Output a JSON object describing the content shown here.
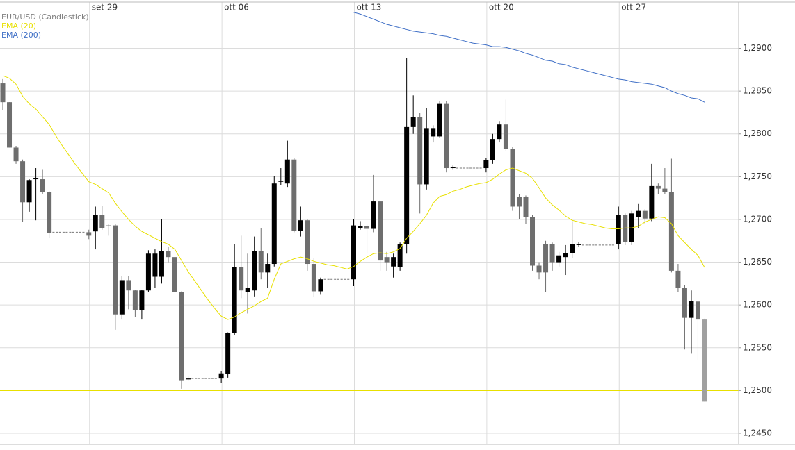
{
  "chart_data": {
    "type": "candlestick",
    "categories": [
      null,
      null,
      null,
      null,
      null,
      null,
      null,
      null,
      null,
      null,
      null,
      null,
      null,
      "set 29",
      null,
      null,
      null,
      null,
      null,
      null,
      null,
      null,
      null,
      null,
      null,
      null,
      null,
      null,
      null,
      null,
      null,
      null,
      null,
      "ott 06",
      null,
      null,
      null,
      null,
      null,
      null,
      null,
      null,
      null,
      null,
      null,
      null,
      null,
      null,
      null,
      null,
      null,
      null,
      null,
      "ott 13",
      null,
      null,
      null,
      null,
      null,
      null,
      null,
      null,
      null,
      null,
      null,
      null,
      null,
      null,
      null,
      null,
      null,
      null,
      null,
      "ott 20",
      null,
      null,
      null,
      null,
      null,
      null,
      null,
      null,
      null,
      null,
      null,
      null,
      null,
      null,
      null,
      null,
      null,
      null,
      null,
      "ott 27",
      null,
      null,
      null,
      null,
      null,
      null,
      null,
      null,
      null,
      null,
      null,
      null,
      null
    ],
    "series": [
      {
        "name": "EUR/USD (Candlestick)",
        "color": "#808080",
        "up_color": "#000000",
        "down_color": "#6e6e6e",
        "last_color": "#a0a0a0",
        "open": [
          1.2859,
          1.2837,
          1.2784,
          1.2768,
          1.272,
          1.2747,
          1.2747,
          1.2732,
          1.2685,
          1.2685,
          1.2685,
          1.2685,
          1.2685,
          1.2685,
          1.2686,
          1.2705,
          1.2693,
          1.2693,
          1.2589,
          1.2629,
          1.2617,
          1.2594,
          1.2617,
          1.2633,
          1.2633,
          1.2663,
          1.2656,
          1.2615,
          1.2513,
          1.2514,
          1.2514,
          1.2514,
          1.2514,
          1.2514,
          1.2519,
          1.2567,
          1.2644,
          1.2615,
          1.2617,
          1.2663,
          1.2638,
          1.2648,
          1.2744,
          1.2742,
          1.277,
          1.2687,
          1.2699,
          1.2648,
          1.2616,
          1.263,
          1.263,
          1.263,
          1.263,
          1.263,
          1.269,
          1.2692,
          1.2689,
          1.2721,
          1.2656,
          1.2645,
          1.2644,
          1.2671,
          1.2808,
          1.282,
          1.2741,
          1.2797,
          1.2797,
          1.2835,
          1.276,
          1.276,
          1.276,
          1.276,
          1.276,
          1.276,
          1.2769,
          1.2794,
          1.2811,
          1.2782,
          1.2726,
          1.2726,
          1.2703,
          1.2646,
          1.2671,
          1.2671,
          1.265,
          1.2656,
          1.2661,
          1.267,
          1.267,
          1.267,
          1.267,
          1.267,
          1.267,
          1.2671,
          1.2705,
          1.2674,
          1.2703,
          1.271,
          1.2701,
          1.2739,
          1.2736,
          1.2732,
          1.264,
          1.262,
          1.2585,
          1.2604,
          1.2583
        ],
        "high": [
          1.2864,
          1.2837,
          1.2786,
          1.277,
          1.2747,
          1.276,
          1.2758,
          1.2733,
          1.2685,
          1.2685,
          1.2685,
          1.2685,
          1.2685,
          1.2688,
          1.2715,
          1.2716,
          1.2695,
          1.2695,
          1.2634,
          1.2634,
          1.2618,
          1.2618,
          1.2664,
          1.2665,
          1.27,
          1.2668,
          1.2657,
          1.2616,
          1.2517,
          1.2514,
          1.2514,
          1.2514,
          1.2514,
          1.2523,
          1.2568,
          1.2671,
          1.2681,
          1.266,
          1.268,
          1.269,
          1.266,
          1.2751,
          1.276,
          1.2792,
          1.2772,
          1.2715,
          1.27,
          1.2655,
          1.2632,
          1.263,
          1.263,
          1.263,
          1.263,
          1.27,
          1.2698,
          1.2695,
          1.2752,
          1.2722,
          1.2662,
          1.266,
          1.2673,
          1.2889,
          1.2845,
          1.2825,
          1.283,
          1.281,
          1.2838,
          1.2838,
          1.2763,
          1.276,
          1.276,
          1.276,
          1.276,
          1.2772,
          1.28,
          1.2815,
          1.284,
          1.2785,
          1.273,
          1.2728,
          1.2705,
          1.265,
          1.2675,
          1.2673,
          1.2662,
          1.267,
          1.2698,
          1.2674,
          1.267,
          1.267,
          1.267,
          1.267,
          1.267,
          1.2715,
          1.2707,
          1.271,
          1.2718,
          1.2712,
          1.2765,
          1.2742,
          1.276,
          1.2771,
          1.2648,
          1.2623,
          1.2617,
          1.2605,
          1.2584
        ],
        "low": [
          1.2828,
          1.2784,
          1.2765,
          1.2697,
          1.2709,
          1.2699,
          1.273,
          1.2678,
          1.2685,
          1.2685,
          1.2685,
          1.2685,
          1.2685,
          1.2677,
          1.2665,
          1.2688,
          1.2681,
          1.2571,
          1.2583,
          1.2595,
          1.2586,
          1.2583,
          1.2615,
          1.262,
          1.2625,
          1.265,
          1.2612,
          1.2502,
          1.2511,
          1.2514,
          1.2514,
          1.2514,
          1.2514,
          1.2509,
          1.2515,
          1.2565,
          1.2608,
          1.259,
          1.261,
          1.263,
          1.262,
          1.2645,
          1.274,
          1.2738,
          1.2685,
          1.268,
          1.264,
          1.2609,
          1.2612,
          1.263,
          1.263,
          1.263,
          1.263,
          1.2622,
          1.2688,
          1.266,
          1.2685,
          1.264,
          1.264,
          1.2632,
          1.264,
          1.266,
          1.28,
          1.2707,
          1.2735,
          1.279,
          1.2795,
          1.2755,
          1.2758,
          1.276,
          1.276,
          1.276,
          1.276,
          1.2755,
          1.2765,
          1.279,
          1.278,
          1.271,
          1.27,
          1.2695,
          1.264,
          1.263,
          1.2615,
          1.264,
          1.2645,
          1.2635,
          1.2655,
          1.2668,
          1.267,
          1.267,
          1.267,
          1.267,
          1.267,
          1.2665,
          1.267,
          1.267,
          1.269,
          1.2695,
          1.2698,
          1.273,
          1.273,
          1.2638,
          1.2615,
          1.2548,
          1.2543,
          1.2535,
          1.2487
        ],
        "close": [
          1.2837,
          1.2784,
          1.2768,
          1.272,
          1.2746,
          1.2748,
          1.2732,
          1.2684,
          1.2685,
          1.2685,
          1.2685,
          1.2685,
          1.2685,
          1.2681,
          1.2705,
          1.269,
          1.2692,
          1.2589,
          1.2629,
          1.2617,
          1.2594,
          1.2617,
          1.266,
          1.266,
          1.2663,
          1.2656,
          1.2615,
          1.2512,
          1.2514,
          1.2514,
          1.2514,
          1.2514,
          1.2514,
          1.252,
          1.2567,
          1.2644,
          1.2617,
          1.262,
          1.2663,
          1.2638,
          1.2648,
          1.2742,
          1.2745,
          1.277,
          1.2687,
          1.2699,
          1.2648,
          1.2616,
          1.263,
          1.263,
          1.263,
          1.263,
          1.263,
          1.2693,
          1.2692,
          1.2689,
          1.2721,
          1.2652,
          1.265,
          1.2656,
          1.2671,
          1.2808,
          1.282,
          1.2741,
          1.2806,
          1.2806,
          1.2835,
          1.276,
          1.2761,
          1.276,
          1.276,
          1.276,
          1.276,
          1.2769,
          1.2794,
          1.2811,
          1.2782,
          1.2715,
          1.2715,
          1.2703,
          1.2646,
          1.2638,
          1.2638,
          1.265,
          1.2658,
          1.2661,
          1.2671,
          1.2671,
          1.267,
          1.267,
          1.267,
          1.267,
          1.267,
          1.2705,
          1.2674,
          1.2707,
          1.271,
          1.2701,
          1.2739,
          1.2736,
          1.2732,
          1.264,
          1.262,
          1.2585,
          1.2605,
          1.2583,
          1.2487
        ]
      },
      {
        "name": "EMA (20)",
        "type": "line",
        "color": "#e8e000",
        "values": [
          1.2868,
          1.2865,
          1.2858,
          1.2844,
          1.2835,
          1.2829,
          1.282,
          1.2811,
          1.2798,
          1.2786,
          1.2775,
          1.2764,
          1.2754,
          1.2744,
          1.2741,
          1.2736,
          1.2731,
          1.2719,
          1.2709,
          1.27,
          1.2692,
          1.2686,
          1.2682,
          1.2678,
          1.2674,
          1.2671,
          1.2665,
          1.2652,
          1.2639,
          1.2628,
          1.2617,
          1.2606,
          1.2596,
          1.2587,
          1.2583,
          1.2586,
          1.2591,
          1.2595,
          1.2599,
          1.2604,
          1.2608,
          1.263,
          1.2648,
          1.2651,
          1.2654,
          1.2656,
          1.2654,
          1.2651,
          1.2649,
          1.2647,
          1.2646,
          1.2644,
          1.2642,
          1.2645,
          1.2651,
          1.2656,
          1.266,
          1.2661,
          1.266,
          1.2662,
          1.2666,
          1.2678,
          1.2686,
          1.2695,
          1.2705,
          1.2719,
          1.2727,
          1.2729,
          1.2733,
          1.2735,
          1.2738,
          1.274,
          1.2742,
          1.2743,
          1.2747,
          1.2753,
          1.2758,
          1.276,
          1.2757,
          1.2754,
          1.2748,
          1.2737,
          1.2725,
          1.2717,
          1.2711,
          1.2704,
          1.2699,
          1.2697,
          1.2695,
          1.2694,
          1.2692,
          1.269,
          1.2689,
          1.2689,
          1.269,
          1.269,
          1.2692,
          1.2697,
          1.27,
          1.2703,
          1.2702,
          1.2695,
          1.2681,
          1.2673,
          1.2665,
          1.2658,
          1.2644
        ]
      },
      {
        "name": "EMA (200)",
        "type": "line",
        "color": "#3f6fc6",
        "values": [
          null,
          null,
          null,
          null,
          null,
          null,
          null,
          null,
          null,
          null,
          null,
          null,
          null,
          null,
          null,
          null,
          null,
          null,
          null,
          null,
          null,
          null,
          null,
          null,
          null,
          null,
          null,
          null,
          null,
          null,
          null,
          null,
          null,
          null,
          null,
          null,
          null,
          null,
          null,
          null,
          null,
          null,
          null,
          null,
          null,
          null,
          null,
          null,
          null,
          null,
          null,
          null,
          null,
          1.2942,
          1.294,
          1.2937,
          1.2934,
          1.2931,
          1.2928,
          1.2926,
          1.2924,
          1.2922,
          1.292,
          1.2919,
          1.2918,
          1.2917,
          1.2915,
          1.2914,
          1.2912,
          1.291,
          1.2908,
          1.2906,
          1.2905,
          1.2904,
          1.2902,
          1.2902,
          1.2901,
          1.2899,
          1.2897,
          1.2894,
          1.2892,
          1.2889,
          1.2886,
          1.2885,
          1.2882,
          1.2881,
          1.2878,
          1.2876,
          1.2874,
          1.2872,
          1.287,
          1.2868,
          1.2866,
          1.2864,
          1.2863,
          1.2861,
          1.286,
          1.2859,
          1.2858,
          1.2856,
          1.2854,
          1.285,
          1.2847,
          1.2845,
          1.2842,
          1.2841,
          1.2837
        ]
      }
    ],
    "ylim": [
      1.2437,
      1.2954
    ],
    "yticks": [
      {
        "value": 1.245,
        "label": "1,2450"
      },
      {
        "value": 1.25,
        "label": "1,2500"
      },
      {
        "value": 1.255,
        "label": "1,2550"
      },
      {
        "value": 1.26,
        "label": "1,2600"
      },
      {
        "value": 1.265,
        "label": "1,2650"
      },
      {
        "value": 1.27,
        "label": "1,2700"
      },
      {
        "value": 1.275,
        "label": "1,2750"
      },
      {
        "value": 1.28,
        "label": "1,2800"
      },
      {
        "value": 1.285,
        "label": "1,2850"
      },
      {
        "value": 1.29,
        "label": "1,2900"
      }
    ],
    "hlines": [
      {
        "value": 1.25,
        "color": "#e8e000"
      }
    ],
    "grid": true,
    "legend": "upper left"
  }
}
